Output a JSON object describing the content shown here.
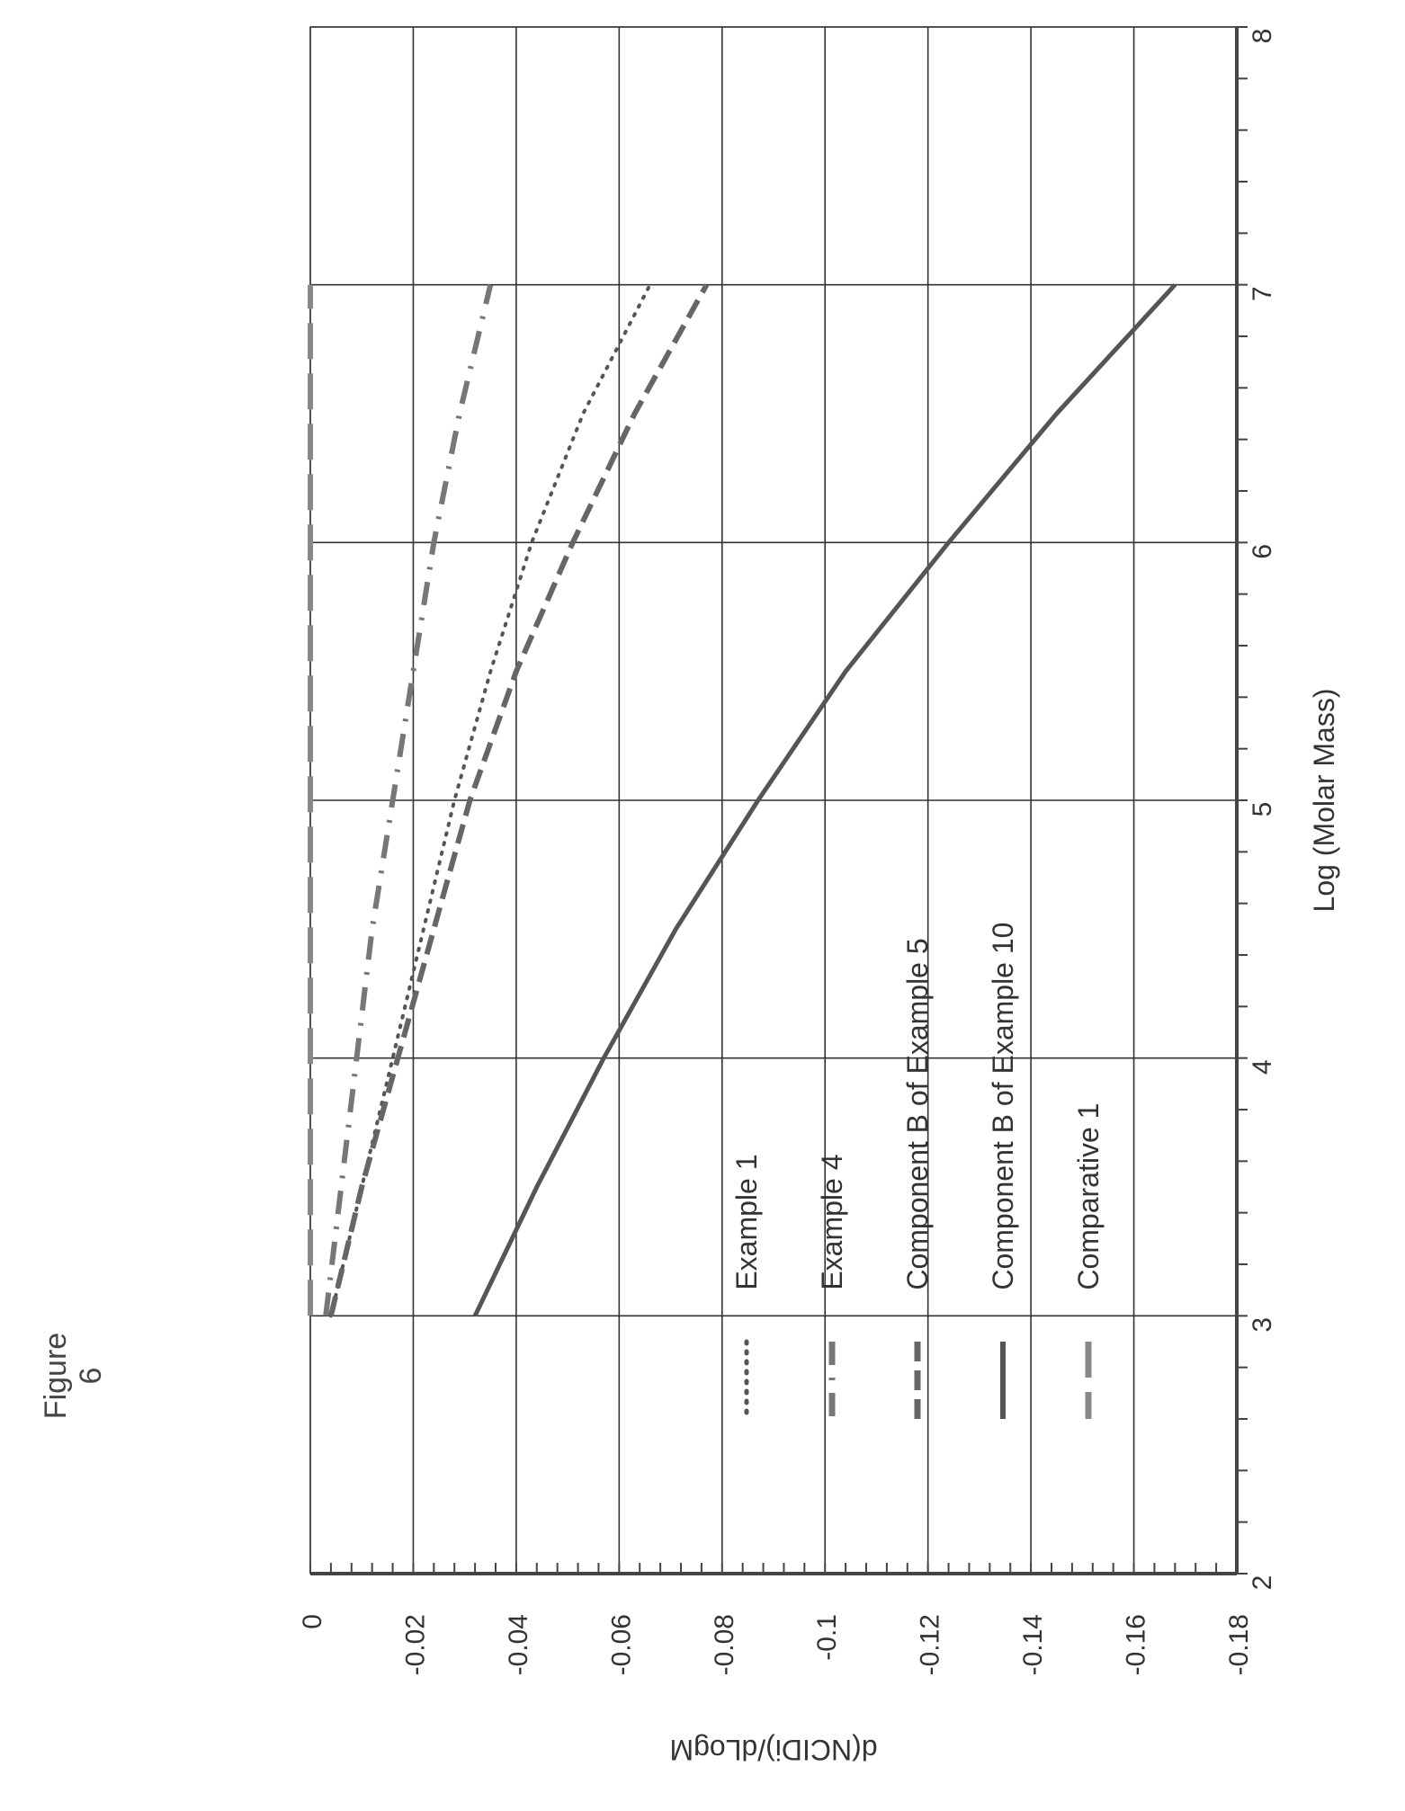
{
  "figure_title": "Figure 6",
  "chart_data": {
    "type": "line",
    "title": "",
    "xlabel": "Log (Molar Mass)",
    "ylabel": "d(NCIDi)/dLogM",
    "xlim": [
      2,
      8
    ],
    "ylim": [
      -0.18,
      0
    ],
    "x_ticks": [
      "2",
      "3",
      "4",
      "5",
      "6",
      "7",
      "8"
    ],
    "y_ticks": [
      "0",
      "-0.02",
      "-0.04",
      "-0.06",
      "-0.08",
      "-0.1",
      "-0.12",
      "-0.14",
      "-0.16",
      "-0.18"
    ],
    "grid": true,
    "legend_placement": "inside-lower-left",
    "series": [
      {
        "name": "Example 1",
        "style": "dotted",
        "color": "#555555",
        "x": [
          3,
          3.5,
          4,
          4.5,
          5,
          5.5,
          6,
          6.5,
          7
        ],
        "y": [
          -0.004,
          -0.01,
          -0.016,
          -0.022,
          -0.028,
          -0.035,
          -0.043,
          -0.053,
          -0.066
        ]
      },
      {
        "name": "Example 4",
        "style": "dash-dot",
        "color": "#777777",
        "x": [
          3,
          3.5,
          4,
          4.5,
          5,
          5.5,
          6,
          6.5,
          7
        ],
        "y": [
          -0.003,
          -0.006,
          -0.009,
          -0.012,
          -0.016,
          -0.02,
          -0.024,
          -0.029,
          -0.035
        ]
      },
      {
        "name": "Component B of  Example 5",
        "style": "dashed",
        "color": "#666666",
        "x": [
          3,
          3.5,
          4,
          4.5,
          5,
          5.5,
          6,
          6.5,
          7
        ],
        "y": [
          -0.004,
          -0.01,
          -0.017,
          -0.024,
          -0.031,
          -0.04,
          -0.051,
          -0.063,
          -0.077
        ]
      },
      {
        "name": "Component B of  Example 10",
        "style": "solid",
        "color": "#555555",
        "x": [
          3,
          3.5,
          4,
          4.5,
          5,
          5.5,
          6,
          6.5,
          7
        ],
        "y": [
          -0.032,
          -0.044,
          -0.057,
          -0.071,
          -0.087,
          -0.104,
          -0.124,
          -0.145,
          -0.168
        ]
      },
      {
        "name": "Comparative 1",
        "style": "long-dash",
        "color": "#888888",
        "x": [
          3,
          3.5,
          4,
          4.5,
          5,
          5.5,
          6,
          6.5,
          7
        ],
        "y": [
          0,
          0,
          0,
          0,
          0,
          0,
          0,
          0,
          0
        ]
      }
    ]
  }
}
